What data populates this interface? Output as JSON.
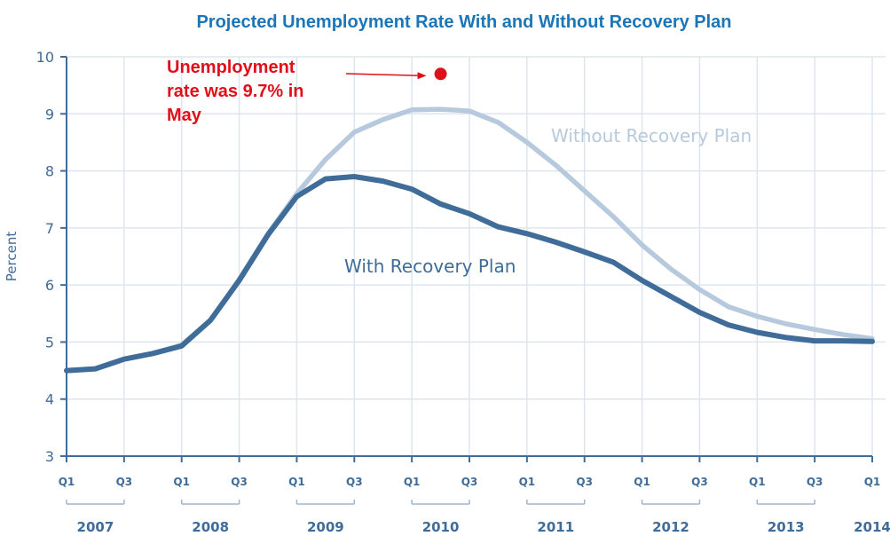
{
  "chart_data": {
    "type": "line",
    "title": "Projected Unemployment Rate With and Without Recovery Plan",
    "ylabel": "Percent",
    "xlabel": "",
    "ylim": [
      3,
      10
    ],
    "yticks": [
      "3",
      "4",
      "5",
      "6",
      "7",
      "8",
      "9",
      "10"
    ],
    "grid": true,
    "quarter_tick_labels": [
      {
        "label": "Q1",
        "t": 0
      },
      {
        "label": "Q3",
        "t": 1
      },
      {
        "label": "Q1",
        "t": 2
      },
      {
        "label": "Q3",
        "t": 3
      },
      {
        "label": "Q1",
        "t": 4
      },
      {
        "label": "Q3",
        "t": 5
      },
      {
        "label": "Q1",
        "t": 6
      },
      {
        "label": "Q3",
        "t": 7
      },
      {
        "label": "Q1",
        "t": 8
      },
      {
        "label": "Q3",
        "t": 9
      },
      {
        "label": "Q1",
        "t": 10
      },
      {
        "label": "Q3",
        "t": 11
      },
      {
        "label": "Q1",
        "t": 12
      },
      {
        "label": "Q3",
        "t": 13
      },
      {
        "label": "Q1",
        "t": 14
      }
    ],
    "year_labels": [
      "2007",
      "2008",
      "2009",
      "2010",
      "2011",
      "2012",
      "2013",
      "2014"
    ],
    "series": [
      {
        "name": "Without Recovery Plan",
        "color": "#b7c9dc",
        "x": [
          "2007 Q1",
          "2007 Q2",
          "2007 Q3",
          "2007 Q4",
          "2008 Q1",
          "2008 Q2",
          "2008 Q3",
          "2008 Q4",
          "2009 Q1",
          "2009 Q2",
          "2009 Q3",
          "2009 Q4",
          "2010 Q1",
          "2010 Q2",
          "2010 Q3",
          "2010 Q4",
          "2011 Q1",
          "2011 Q2",
          "2011 Q3",
          "2011 Q4",
          "2012 Q1",
          "2012 Q2",
          "2012 Q3",
          "2012 Q4",
          "2013 Q1",
          "2013 Q2",
          "2013 Q3",
          "2013 Q4",
          "2014 Q1"
        ],
        "values": [
          4.5,
          4.53,
          4.7,
          4.8,
          4.95,
          5.38,
          6.1,
          6.9,
          7.6,
          8.2,
          8.68,
          8.9,
          9.07,
          9.08,
          9.05,
          8.85,
          8.5,
          8.1,
          7.65,
          7.2,
          6.7,
          6.28,
          5.92,
          5.62,
          5.45,
          5.32,
          5.22,
          5.13,
          5.06
        ]
      },
      {
        "name": "With Recovery Plan",
        "color": "#3f6c98",
        "x": [
          "2007 Q1",
          "2007 Q2",
          "2007 Q3",
          "2007 Q4",
          "2008 Q1",
          "2008 Q2",
          "2008 Q3",
          "2008 Q4",
          "2009 Q1",
          "2009 Q2",
          "2009 Q3",
          "2009 Q4",
          "2010 Q1",
          "2010 Q2",
          "2010 Q3",
          "2010 Q4",
          "2011 Q1",
          "2011 Q2",
          "2011 Q3",
          "2011 Q4",
          "2012 Q1",
          "2012 Q2",
          "2012 Q3",
          "2012 Q4",
          "2013 Q1",
          "2013 Q2",
          "2013 Q3",
          "2013 Q4",
          "2014 Q1"
        ],
        "values": [
          4.5,
          4.53,
          4.7,
          4.8,
          4.93,
          5.38,
          6.08,
          6.88,
          7.55,
          7.86,
          7.9,
          7.82,
          7.68,
          7.42,
          7.25,
          7.02,
          6.9,
          6.75,
          6.58,
          6.4,
          6.08,
          5.8,
          5.52,
          5.3,
          5.17,
          5.08,
          5.02,
          5.02,
          5.01
        ]
      }
    ],
    "annotation": {
      "lines": [
        "Unemployment",
        "rate was 9.7% in",
        "May"
      ],
      "point": {
        "x": "2010 Q2",
        "value": 9.7
      },
      "color": "#e0101a"
    },
    "colors": {
      "title": "#1a76b8",
      "axis": "#3f6c98",
      "grid": "#dde6ef",
      "tick_text": "#3f6c98",
      "year_bracket": "#9fb6cd"
    }
  }
}
